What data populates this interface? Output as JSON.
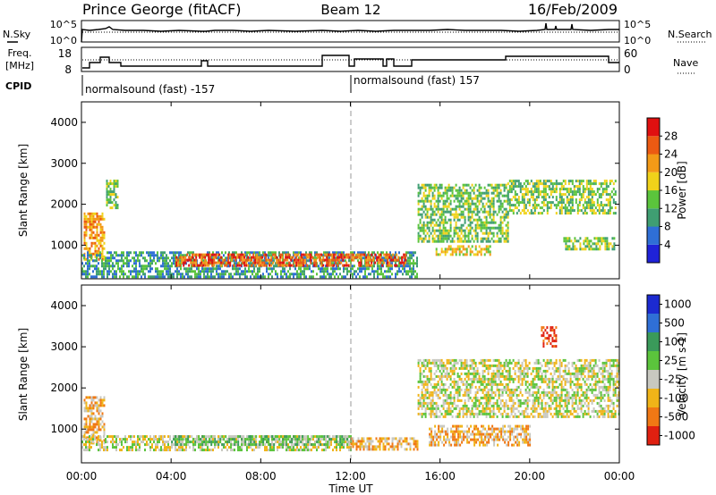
{
  "header": {
    "station": "Prince George (fitACF)",
    "beam": "Beam 12",
    "date": "16/Feb/2009"
  },
  "noise_panel": {
    "left_label": "N.Sky",
    "left_ticks": [
      "10^5",
      "10^0"
    ],
    "right_ticks": [
      "10^5",
      "10^0"
    ],
    "right_label": "N.Search"
  },
  "freq_panel": {
    "left_label_line1": "Freq.",
    "left_label_line2": "[MHz]",
    "left_ticks": [
      "18",
      "8"
    ],
    "right_ticks": [
      "60",
      "0"
    ],
    "right_label": "Nave"
  },
  "cpid": {
    "label": "CPID",
    "segments": [
      {
        "text": "normalsound (fast) -157",
        "start": "00:00"
      },
      {
        "text": "normalsound (fast) 157",
        "start": "12:00"
      }
    ]
  },
  "x_axis": {
    "label": "Time UT",
    "ticks": [
      "00:00",
      "04:00",
      "08:00",
      "12:00",
      "16:00",
      "20:00",
      "00:00"
    ]
  },
  "chart_data": [
    {
      "type": "heatmap",
      "name": "power",
      "ylabel": "Slant Range [km]",
      "yticks": [
        "1000",
        "2000",
        "3000",
        "4000"
      ],
      "ylim": [
        180,
        4500
      ],
      "xlim": [
        "00:00",
        "00:00"
      ],
      "colorbar": {
        "label": "Power [dB]",
        "ticks": [
          "4",
          "8",
          "12",
          "16",
          "20",
          "24",
          "28"
        ],
        "colors": [
          "#1f22d8",
          "#2f6fd6",
          "#3f9e72",
          "#5bc43c",
          "#f0d21a",
          "#f39a17",
          "#ec5a12",
          "#e01010"
        ]
      },
      "regions": [
        {
          "t0": 0.1,
          "t1": 1.0,
          "r0": 650,
          "r1": 1800,
          "level": 5
        },
        {
          "t0": 1.1,
          "t1": 1.6,
          "r0": 1900,
          "r1": 2600,
          "level": 3
        },
        {
          "t0": 0.0,
          "t1": 15.0,
          "r0": 200,
          "r1": 850,
          "level": 2
        },
        {
          "t0": 4.2,
          "t1": 14.5,
          "r0": 500,
          "r1": 800,
          "level": 6
        },
        {
          "t0": 15.0,
          "t1": 19.0,
          "r0": 1100,
          "r1": 2500,
          "level": 3
        },
        {
          "t0": 15.8,
          "t1": 18.2,
          "r0": 800,
          "r1": 1000,
          "level": 4
        },
        {
          "t0": 19.0,
          "t1": 23.8,
          "r0": 1800,
          "r1": 2600,
          "level": 3
        },
        {
          "t0": 21.5,
          "t1": 23.8,
          "r0": 900,
          "r1": 1200,
          "level": 3
        }
      ]
    },
    {
      "type": "heatmap",
      "name": "velocity",
      "ylabel": "Slant Range [km]",
      "yticks": [
        "1000",
        "2000",
        "3000",
        "4000"
      ],
      "ylim": [
        180,
        4500
      ],
      "xlim": [
        "00:00",
        "00:00"
      ],
      "colorbar": {
        "label": "Velocity [m s-1]",
        "ticks": [
          "1000",
          "500",
          "100",
          "25",
          "-25",
          "-100",
          "-500",
          "-1000"
        ],
        "colors": [
          "#1c2ad0",
          "#2f6fd6",
          "#3a9a5a",
          "#5bc43c",
          "#c8c8c0",
          "#f0b418",
          "#f07814",
          "#e02010"
        ]
      },
      "regions": [
        {
          "t0": 0.1,
          "t1": 1.0,
          "r0": 650,
          "r1": 1800,
          "level": 5
        },
        {
          "t0": 0.0,
          "t1": 12.0,
          "r0": 500,
          "r1": 850,
          "level": 4
        },
        {
          "t0": 4.0,
          "t1": 12.0,
          "r0": 600,
          "r1": 850,
          "level": 3
        },
        {
          "t0": 12.0,
          "t1": 15.0,
          "r0": 500,
          "r1": 800,
          "level": 5
        },
        {
          "t0": 15.0,
          "t1": 24.0,
          "r0": 1300,
          "r1": 2700,
          "level": 4
        },
        {
          "t0": 15.5,
          "t1": 20.0,
          "r0": 600,
          "r1": 1100,
          "level": 5
        },
        {
          "t0": 20.5,
          "t1": 21.2,
          "r0": 3000,
          "r1": 3500,
          "level": 7
        }
      ]
    }
  ]
}
